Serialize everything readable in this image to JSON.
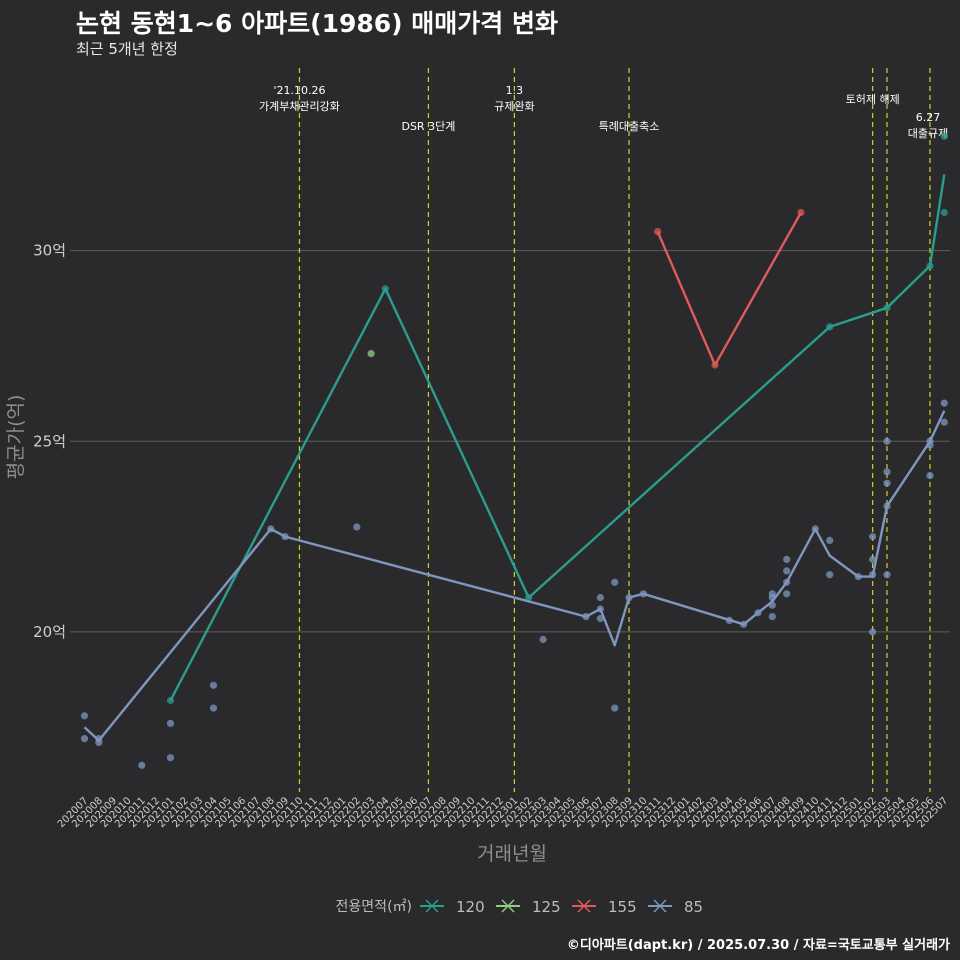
{
  "header": {
    "title": "논현 동현1~6 아파트(1986) 매매가격 변화",
    "subtitle": "최근 5개년 한정"
  },
  "caption": "©디아파트(dapt.kr) / 2025.07.30 / 자료=국토교통부 실거래가",
  "chart_data": {
    "type": "line",
    "title": "논현 동현1~6 아파트(1986) 매매가격 변화",
    "xlabel": "거래년월",
    "ylabel": "평균가(억)",
    "ylim": [
      15.8,
      35
    ],
    "y_ticks": [
      {
        "value": 20,
        "label": "20억"
      },
      {
        "value": 25,
        "label": "25억"
      },
      {
        "value": 30,
        "label": "30억"
      }
    ],
    "categories": [
      "202007",
      "202008",
      "202009",
      "202010",
      "202011",
      "202012",
      "202101",
      "202102",
      "202103",
      "202104",
      "202105",
      "202106",
      "202107",
      "202108",
      "202109",
      "202110",
      "202111",
      "202112",
      "202201",
      "202202",
      "202203",
      "202204",
      "202205",
      "202206",
      "202207",
      "202208",
      "202209",
      "202210",
      "202211",
      "202212",
      "202301",
      "202302",
      "202303",
      "202304",
      "202305",
      "202306",
      "202307",
      "202308",
      "202309",
      "202310",
      "202311",
      "202312",
      "202401",
      "202402",
      "202403",
      "202404",
      "202405",
      "202406",
      "202407",
      "202408",
      "202409",
      "202410",
      "202411",
      "202412",
      "202501",
      "202502",
      "202503",
      "202504",
      "202505",
      "202506",
      "202507"
    ],
    "legend_title": "전용면적(㎡)",
    "series": [
      {
        "name": "120",
        "color": "#2a9d8f",
        "line": [
          [
            "202101",
            18.2
          ],
          [
            "202204",
            29.0
          ],
          [
            "202302",
            20.9
          ],
          [
            "202411",
            28.0
          ],
          [
            "202503",
            28.5
          ],
          [
            "202506",
            29.6
          ],
          [
            "202507",
            32.0
          ]
        ],
        "points": [
          [
            "202101",
            18.2
          ],
          [
            "202204",
            29.0
          ],
          [
            "202302",
            20.9
          ],
          [
            "202411",
            28.0
          ],
          [
            "202503",
            28.5
          ],
          [
            "202506",
            29.6
          ],
          [
            "202507",
            33.0
          ],
          [
            "202507",
            31.0
          ]
        ]
      },
      {
        "name": "125",
        "color": "#8ed081",
        "line": [],
        "points": [
          [
            "202203",
            27.3
          ]
        ]
      },
      {
        "name": "155",
        "color": "#e05a5a",
        "line": [
          [
            "202311",
            30.5
          ],
          [
            "202403",
            27.0
          ],
          [
            "202409",
            31.0
          ]
        ],
        "points": [
          [
            "202311",
            30.5
          ],
          [
            "202403",
            27.0
          ],
          [
            "202409",
            31.0
          ]
        ]
      },
      {
        "name": "85",
        "color": "#7f97bf",
        "line": [
          [
            "202007",
            17.5
          ],
          [
            "202008",
            17.15
          ],
          [
            "202108",
            22.7
          ],
          [
            "202109",
            22.5
          ],
          [
            "202306",
            20.4
          ],
          [
            "202307",
            20.6
          ],
          [
            "202308",
            19.65
          ],
          [
            "202309",
            20.9
          ],
          [
            "202310",
            21.0
          ],
          [
            "202405",
            20.2
          ],
          [
            "202406",
            20.5
          ],
          [
            "202407",
            20.8
          ],
          [
            "202408",
            21.3
          ],
          [
            "202410",
            22.7
          ],
          [
            "202411",
            22.0
          ],
          [
            "202501",
            21.45
          ],
          [
            "202502",
            21.45
          ],
          [
            "202503",
            23.3
          ],
          [
            "202506",
            25.0
          ],
          [
            "202507",
            25.8
          ]
        ],
        "points": [
          [
            "202007",
            17.8
          ],
          [
            "202007",
            17.2
          ],
          [
            "202008",
            17.2
          ],
          [
            "202008",
            17.1
          ],
          [
            "202011",
            16.5
          ],
          [
            "202101",
            17.6
          ],
          [
            "202101",
            16.7
          ],
          [
            "202104",
            18.6
          ],
          [
            "202104",
            18.0
          ],
          [
            "202108",
            22.7
          ],
          [
            "202109",
            22.5
          ],
          [
            "202202",
            22.75
          ],
          [
            "202303",
            19.8
          ],
          [
            "202306",
            20.4
          ],
          [
            "202307",
            20.9
          ],
          [
            "202307",
            20.6
          ],
          [
            "202307",
            20.35
          ],
          [
            "202308",
            21.3
          ],
          [
            "202308",
            18.0
          ],
          [
            "202309",
            20.9
          ],
          [
            "202310",
            21.0
          ],
          [
            "202404",
            20.3
          ],
          [
            "202405",
            20.2
          ],
          [
            "202406",
            20.5
          ],
          [
            "202407",
            21.0
          ],
          [
            "202407",
            20.9
          ],
          [
            "202407",
            20.7
          ],
          [
            "202407",
            20.4
          ],
          [
            "202408",
            21.9
          ],
          [
            "202408",
            21.6
          ],
          [
            "202408",
            21.3
          ],
          [
            "202408",
            21.0
          ],
          [
            "202410",
            22.7
          ],
          [
            "202411",
            22.4
          ],
          [
            "202411",
            21.5
          ],
          [
            "202501",
            21.45
          ],
          [
            "202502",
            22.5
          ],
          [
            "202502",
            21.9
          ],
          [
            "202502",
            21.5
          ],
          [
            "202502",
            20.0
          ],
          [
            "202503",
            25.0
          ],
          [
            "202503",
            24.2
          ],
          [
            "202503",
            23.9
          ],
          [
            "202503",
            23.3
          ],
          [
            "202503",
            21.5
          ],
          [
            "202506",
            25.0
          ],
          [
            "202506",
            24.9
          ],
          [
            "202506",
            24.1
          ],
          [
            "202507",
            26.0
          ],
          [
            "202507",
            25.5
          ]
        ]
      }
    ],
    "annotations": [
      {
        "x": "202110",
        "label_lines": [
          "'21.10.26",
          "가계부채관리강화"
        ]
      },
      {
        "x": "202207",
        "label_lines": [
          "DSR 3단계"
        ]
      },
      {
        "x": "202301",
        "label_lines": [
          "1.3",
          "규제완화"
        ]
      },
      {
        "x": "202309",
        "label_lines": [
          "특례대출축소"
        ]
      },
      {
        "x": "202502",
        "label_lines": [
          "토허제 해제"
        ]
      },
      {
        "x": "202503",
        "label_lines": []
      },
      {
        "x": "202506",
        "label_lines": [
          "6.27",
          "대출규제"
        ]
      }
    ]
  }
}
